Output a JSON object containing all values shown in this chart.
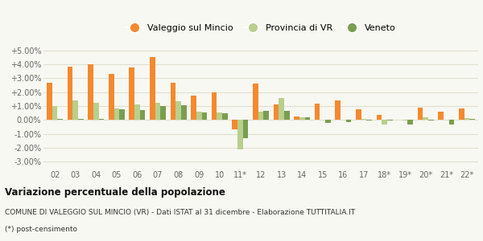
{
  "categories": [
    "02",
    "03",
    "04",
    "05",
    "06",
    "07",
    "08",
    "09",
    "10",
    "11*",
    "12",
    "13",
    "14",
    "15",
    "16",
    "17",
    "18*",
    "19*",
    "20*",
    "21*",
    "22*"
  ],
  "valeggio": [
    2.7,
    3.8,
    4.0,
    3.3,
    3.75,
    4.5,
    2.65,
    1.75,
    2.0,
    -0.65,
    2.6,
    1.1,
    0.27,
    1.15,
    1.4,
    0.75,
    0.35,
    0.0,
    0.9,
    0.6,
    0.85
  ],
  "provincia": [
    1.0,
    1.4,
    1.25,
    0.85,
    1.1,
    1.25,
    1.35,
    0.6,
    0.55,
    -2.1,
    0.6,
    1.55,
    0.2,
    0.0,
    0.0,
    0.1,
    -0.3,
    -0.05,
    0.2,
    0.0,
    0.15
  ],
  "veneto": [
    0.05,
    0.05,
    0.05,
    0.78,
    0.7,
    1.0,
    1.05,
    0.55,
    0.5,
    -1.3,
    0.65,
    0.65,
    0.22,
    -0.2,
    -0.15,
    -0.05,
    -0.05,
    -0.3,
    -0.05,
    -0.3,
    0.1
  ],
  "color_valeggio": "#f4892f",
  "color_provincia": "#b8cf8e",
  "color_veneto": "#7a9e50",
  "title_bold": "Variazione percentuale della popolazione",
  "subtitle": "COMUNE DI VALEGGIO SUL MINCIO (VR) - Dati ISTAT al 31 dicembre - Elaborazione TUTTITALIA.IT",
  "footnote": "(*) post-censimento",
  "ylim": [
    -3.5,
    5.5
  ],
  "yticks": [
    -3.0,
    -2.0,
    -1.0,
    0.0,
    1.0,
    2.0,
    3.0,
    4.0,
    5.0
  ],
  "ytick_labels": [
    "-3.00%",
    "-2.00%",
    "-1.00%",
    "0.00%",
    "+1.00%",
    "+2.00%",
    "+3.00%",
    "+4.00%",
    "+5.00%"
  ],
  "bg_color": "#f8f8f2",
  "grid_color": "#e0e0d0",
  "legend_labels": [
    "Valeggio sul Mincio",
    "Provincia di VR",
    "Veneto"
  ]
}
